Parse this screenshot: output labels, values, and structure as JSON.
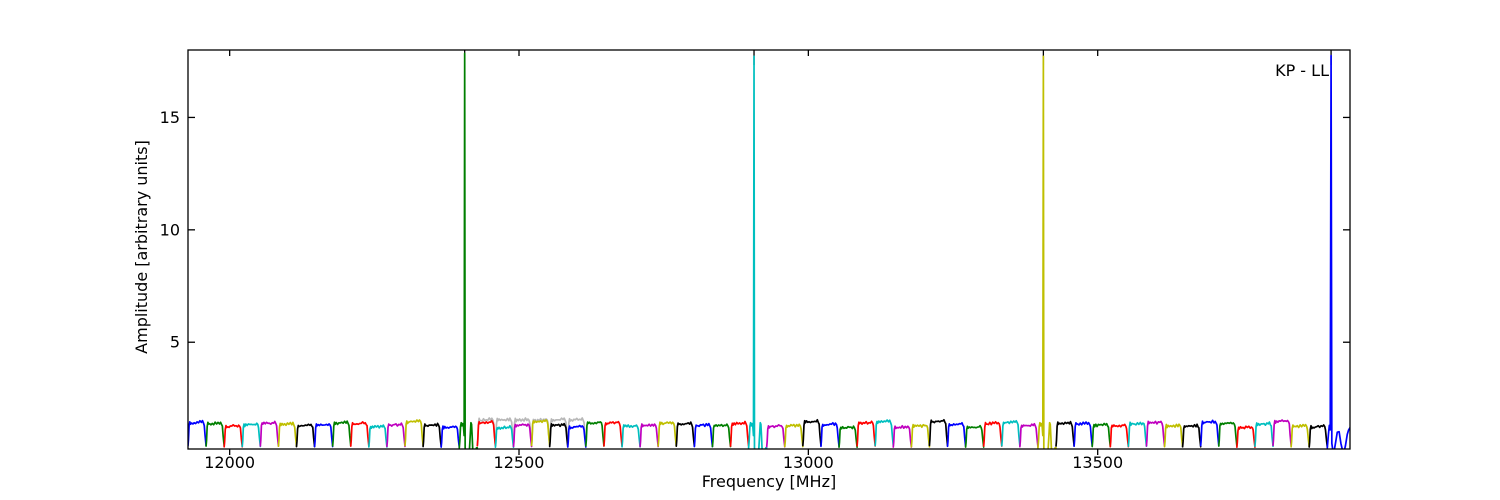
{
  "chart_data": {
    "type": "line",
    "title": "",
    "xlabel": "Frequency [MHz]",
    "ylabel": "Amplitude [arbitrary units]",
    "legend_label": "KP - LL",
    "legend_position": "upper right",
    "grid": false,
    "xlim": [
      11928,
      13936
    ],
    "ylim": [
      0.25,
      18.0
    ],
    "xticks": [
      12000,
      12500,
      13000,
      13500
    ],
    "yticks": [
      5,
      10,
      15
    ],
    "color_cycle": [
      "#0000ff",
      "#007f00",
      "#ff0000",
      "#00bfbf",
      "#bf00bf",
      "#bfbf00",
      "#000000"
    ],
    "gray_color": "#b8b8b8",
    "band_start_mhz": 11928,
    "band_width_mhz": 31.25,
    "num_bands": 64,
    "baseline_amplitude": 1.32,
    "bump_profile": [
      [
        0.0,
        0.28
      ],
      [
        0.025,
        0.46
      ],
      [
        0.06,
        0.92
      ],
      [
        0.1,
        1.04
      ],
      [
        0.14,
        0.98
      ],
      [
        0.2,
        1.02
      ],
      [
        0.27,
        0.99
      ],
      [
        0.34,
        1.03
      ],
      [
        0.42,
        1.0
      ],
      [
        0.5,
        1.04
      ],
      [
        0.58,
        1.0
      ],
      [
        0.66,
        1.05
      ],
      [
        0.74,
        1.01
      ],
      [
        0.8,
        1.06
      ],
      [
        0.86,
        1.0
      ],
      [
        0.9,
        0.93
      ],
      [
        0.945,
        0.6
      ],
      [
        1.0,
        0.28
      ]
    ],
    "profiles": {
      "spike_profile": [
        [
          0.0,
          0.3
        ],
        [
          0.03,
          0.6
        ],
        [
          0.07,
          1.25
        ],
        [
          0.11,
          1.42
        ],
        [
          0.15,
          1.28
        ],
        [
          0.19,
          1.38
        ],
        [
          0.23,
          1.3
        ],
        [
          0.27,
          0.85
        ],
        [
          0.325,
          0.3
        ],
        [
          0.36,
          0.1
        ],
        [
          0.43,
          0.05
        ],
        [
          0.5,
          0.07
        ],
        [
          0.56,
          0.18
        ],
        [
          0.61,
          0.9
        ],
        [
          0.645,
          1.42
        ],
        [
          0.68,
          1.35
        ],
        [
          0.715,
          0.8
        ],
        [
          0.75,
          0.15
        ],
        [
          0.82,
          0.06
        ],
        [
          0.89,
          0.08
        ],
        [
          0.95,
          0.3
        ],
        [
          1.0,
          0.3
        ]
      ],
      "last_band_profile": [
        [
          0.0,
          0.3
        ],
        [
          0.05,
          0.9
        ],
        [
          0.09,
          1.3
        ],
        [
          0.13,
          1.1
        ],
        [
          0.2,
          0.5
        ],
        [
          0.25,
          0.15
        ],
        [
          0.295,
          0.12
        ],
        [
          0.36,
          0.5
        ],
        [
          0.44,
          1.0
        ],
        [
          0.52,
          1.02
        ],
        [
          0.6,
          0.5
        ],
        [
          0.68,
          0.15
        ],
        [
          0.735,
          0.12
        ],
        [
          0.8,
          0.4
        ],
        [
          0.88,
          0.9
        ],
        [
          0.94,
          1.1
        ],
        [
          1.0,
          1.2
        ]
      ]
    },
    "spikes": [
      {
        "band_index": 15,
        "t": 0.3,
        "freq_mhz": 12406,
        "peak": 17.85,
        "gray_tip": true,
        "profile": "spike_profile"
      },
      {
        "band_index": 31,
        "t": 0.3,
        "freq_mhz": 12906,
        "peak": 17.72,
        "gray_tip": true,
        "profile": "spike_profile"
      },
      {
        "band_index": 47,
        "t": 0.3,
        "freq_mhz": 13406,
        "peak": 17.72,
        "gray_tip": true,
        "profile": "spike_profile"
      },
      {
        "band_index": 63,
        "t": 0.167,
        "freq_mhz": 13903,
        "peak": 17.75,
        "gray_tip": true,
        "profile": "last_band_profile"
      }
    ],
    "gray_bands": {
      "start_index": 16,
      "end_index": 21,
      "amplitude": 1.52
    }
  }
}
